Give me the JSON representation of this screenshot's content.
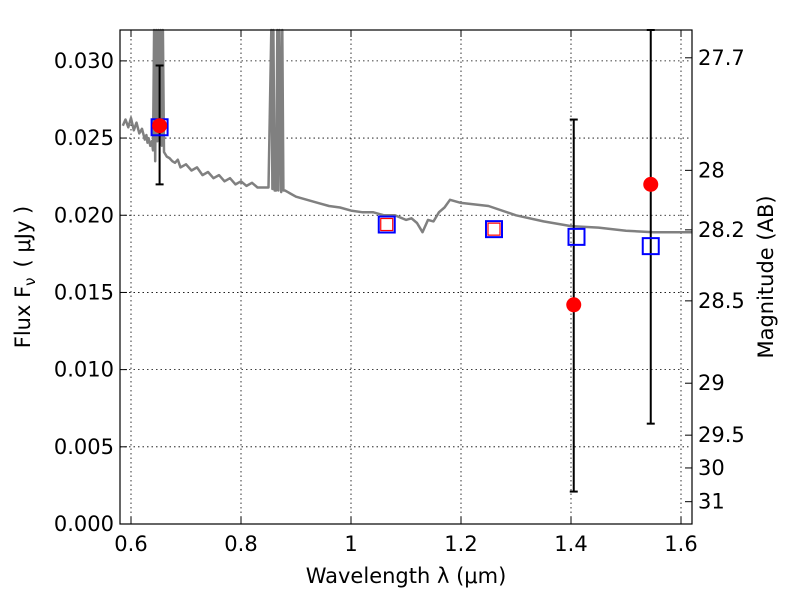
{
  "chart_data": {
    "type": "scatter",
    "xlabel": "Wavelength  λ (μm)",
    "ylabel_left": "Flux  F",
    "ylabel_left_sub": "ν",
    "ylabel_left_unit": "( μJy )",
    "ylabel_right": "Magnitude (AB)",
    "xlim": [
      0.58,
      1.62
    ],
    "ylim": [
      0.0,
      0.032
    ],
    "x_ticks": [
      0.6,
      0.8,
      1.0,
      1.2,
      1.4,
      1.6
    ],
    "x_tick_labels": [
      "0.6",
      "0.8",
      "1",
      "1.2",
      "1.4",
      "1.6"
    ],
    "y_ticks": [
      0.0,
      0.005,
      0.01,
      0.015,
      0.02,
      0.025,
      0.03
    ],
    "y_tick_labels": [
      "0.000",
      "0.005",
      "0.010",
      "0.015",
      "0.020",
      "0.025",
      "0.030"
    ],
    "right_ticks": [
      {
        "mag": 27.7,
        "label": "27.7"
      },
      {
        "mag": 28.0,
        "label": "28"
      },
      {
        "mag": 28.2,
        "label": "28.2"
      },
      {
        "mag": 28.5,
        "label": "28.5"
      },
      {
        "mag": 29.0,
        "label": "29"
      },
      {
        "mag": 29.5,
        "label": "29.5"
      },
      {
        "mag": 30.0,
        "label": "30"
      },
      {
        "mag": 31.0,
        "label": "31"
      }
    ],
    "grid": true,
    "colors": {
      "model": "#808080",
      "observed": "#ff0000",
      "model_photometry": "#0000ff",
      "errorbar": "#000000",
      "axes": "#000000",
      "grid": "#000000"
    },
    "series": [
      {
        "kind": "model-spectrum",
        "x": [
          0.585,
          0.59,
          0.595,
          0.6,
          0.605,
          0.61,
          0.615,
          0.62,
          0.625,
          0.628,
          0.63,
          0.632,
          0.635,
          0.638,
          0.64,
          0.642,
          0.644,
          0.646,
          0.648,
          0.65,
          0.652,
          0.654,
          0.656,
          0.658,
          0.66,
          0.665,
          0.67,
          0.675,
          0.68,
          0.685,
          0.69,
          0.7,
          0.71,
          0.72,
          0.73,
          0.74,
          0.75,
          0.76,
          0.77,
          0.78,
          0.79,
          0.8,
          0.81,
          0.82,
          0.83,
          0.84,
          0.85,
          0.855,
          0.857,
          0.859,
          0.861,
          0.864,
          0.866,
          0.868,
          0.87,
          0.873,
          0.875,
          0.877,
          0.88,
          0.885,
          0.89,
          0.9,
          0.92,
          0.94,
          0.96,
          0.98,
          1.0,
          1.02,
          1.04,
          1.06,
          1.08,
          1.1,
          1.11,
          1.12,
          1.13,
          1.14,
          1.15,
          1.16,
          1.17,
          1.18,
          1.2,
          1.25,
          1.3,
          1.35,
          1.4,
          1.45,
          1.5,
          1.55,
          1.6,
          1.62
        ],
        "y": [
          0.0258,
          0.0262,
          0.0257,
          0.0263,
          0.0255,
          0.026,
          0.0253,
          0.0256,
          0.0249,
          0.0252,
          0.0247,
          0.025,
          0.0245,
          0.0248,
          0.0242,
          0.032,
          0.0235,
          0.032,
          0.0248,
          0.032,
          0.0252,
          0.032,
          0.0245,
          0.032,
          0.0241,
          0.0238,
          0.0237,
          0.0235,
          0.0234,
          0.0236,
          0.0231,
          0.0233,
          0.0229,
          0.0231,
          0.0226,
          0.0228,
          0.0224,
          0.0226,
          0.0222,
          0.0224,
          0.022,
          0.0222,
          0.0219,
          0.0221,
          0.0218,
          0.0218,
          0.0218,
          0.032,
          0.0217,
          0.032,
          0.0216,
          0.0216,
          0.032,
          0.0216,
          0.032,
          0.0215,
          0.032,
          0.0216,
          0.0216,
          0.0215,
          0.0214,
          0.0212,
          0.021,
          0.0208,
          0.0206,
          0.0205,
          0.0203,
          0.0202,
          0.0202,
          0.02,
          0.02,
          0.0197,
          0.0198,
          0.0195,
          0.0189,
          0.0197,
          0.0196,
          0.0202,
          0.0205,
          0.021,
          0.0208,
          0.0206,
          0.02,
          0.0196,
          0.0193,
          0.0192,
          0.019,
          0.0189,
          0.0189,
          0.0189
        ]
      },
      {
        "kind": "observed",
        "points": [
          {
            "x": 0.652,
            "y": 0.0258,
            "err_lo": 0.022,
            "err_hi": 0.0297
          },
          {
            "x": 1.405,
            "y": 0.0142,
            "err_lo": 0.0021,
            "err_hi": 0.0262
          },
          {
            "x": 1.545,
            "y": 0.022,
            "err_lo": 0.0065,
            "err_hi": 0.032
          }
        ]
      },
      {
        "kind": "model-photometry",
        "points": [
          {
            "x": 0.652,
            "y": 0.0257
          },
          {
            "x": 1.065,
            "y": 0.0194
          },
          {
            "x": 1.26,
            "y": 0.0191
          },
          {
            "x": 1.41,
            "y": 0.0186
          },
          {
            "x": 1.545,
            "y": 0.018
          }
        ]
      },
      {
        "kind": "upper-limit-open",
        "points": [
          {
            "x": 1.065,
            "y": 0.0194
          },
          {
            "x": 1.26,
            "y": 0.0191
          }
        ]
      }
    ]
  }
}
